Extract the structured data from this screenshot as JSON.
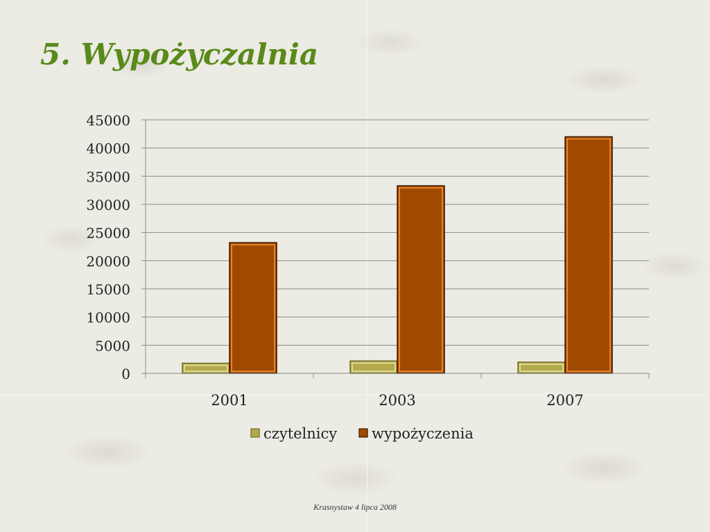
{
  "slide": {
    "title": "5. Wypożyczalnia",
    "footer": "Krasnystaw 4 lipca 2008"
  },
  "chart_data": {
    "type": "bar",
    "categories": [
      "2001",
      "2003",
      "2007"
    ],
    "series": [
      {
        "name": "czytelnicy",
        "values": [
          1800,
          2200,
          2000
        ],
        "color": "#b3aa4e"
      },
      {
        "name": "wypożyczenia",
        "values": [
          23200,
          33300,
          42000
        ],
        "color": "#a04a00"
      }
    ],
    "ylim": [
      0,
      45000
    ],
    "yticks": [
      0,
      5000,
      10000,
      15000,
      20000,
      25000,
      30000,
      35000,
      40000,
      45000
    ],
    "grid": true,
    "legend": "bottom",
    "title": "",
    "xlabel": "",
    "ylabel": ""
  }
}
